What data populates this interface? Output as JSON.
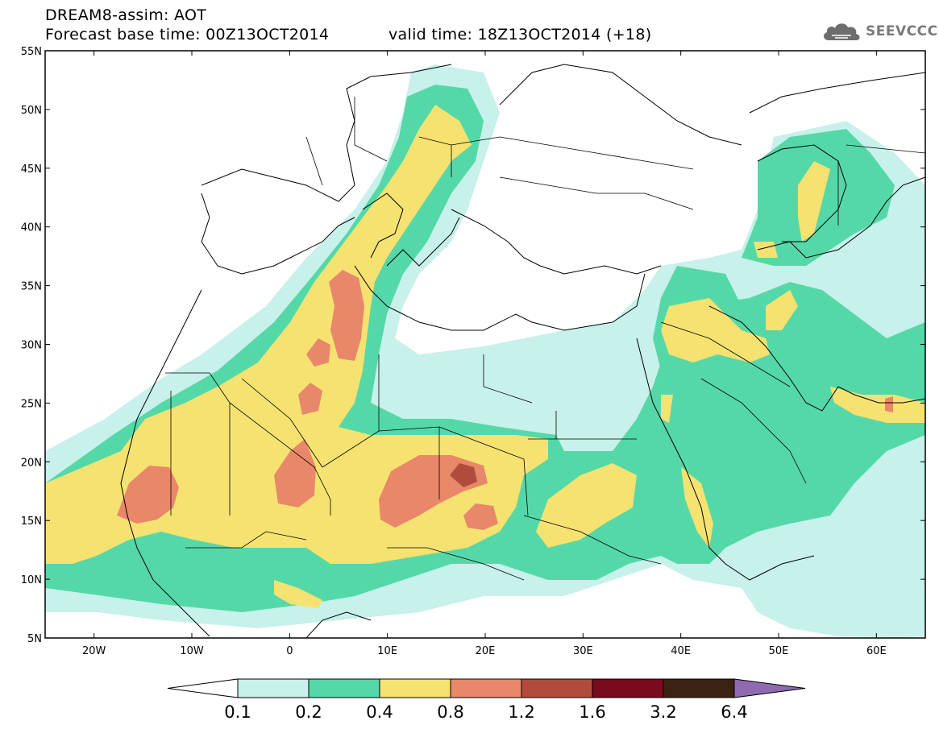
{
  "header": {
    "title_line1": "DREAM8-assim: AOT",
    "title_line2": "Forecast base time: 00Z13OCT2014",
    "valid_time": "valid time: 18Z13OCT2014 (+18)"
  },
  "logo": {
    "text": "SEEVCCC",
    "icon": "cloud-icon"
  },
  "map": {
    "lon_range": [
      -25,
      65
    ],
    "lat_range": [
      5,
      55
    ],
    "lat_ticks": [
      "55N",
      "50N",
      "45N",
      "40N",
      "35N",
      "30N",
      "25N",
      "20N",
      "15N",
      "10N",
      "5N"
    ],
    "lon_ticks": [
      "20W",
      "10W",
      "0",
      "10E",
      "20E",
      "30E",
      "40E",
      "50E",
      "60E"
    ],
    "colors": {
      "c01": "#c7f1ea",
      "c02": "#55d8a8",
      "c04": "#f6e270",
      "c08": "#e8876a",
      "c12": "#b14c3c",
      "c16": "#7a0a1e",
      "c32": "#3b2212",
      "c64": "#8f6ab0",
      "border": "#000000"
    }
  },
  "colorbar": {
    "labels": [
      "0.1",
      "0.2",
      "0.4",
      "0.8",
      "1.2",
      "1.6",
      "3.2",
      "6.4"
    ],
    "colors": [
      "#c7f1ea",
      "#55d8a8",
      "#f6e270",
      "#e8876a",
      "#b14c3c",
      "#7a0a1e",
      "#3b2212"
    ],
    "under_color": "#ffffff",
    "over_color": "#8f6ab0"
  }
}
